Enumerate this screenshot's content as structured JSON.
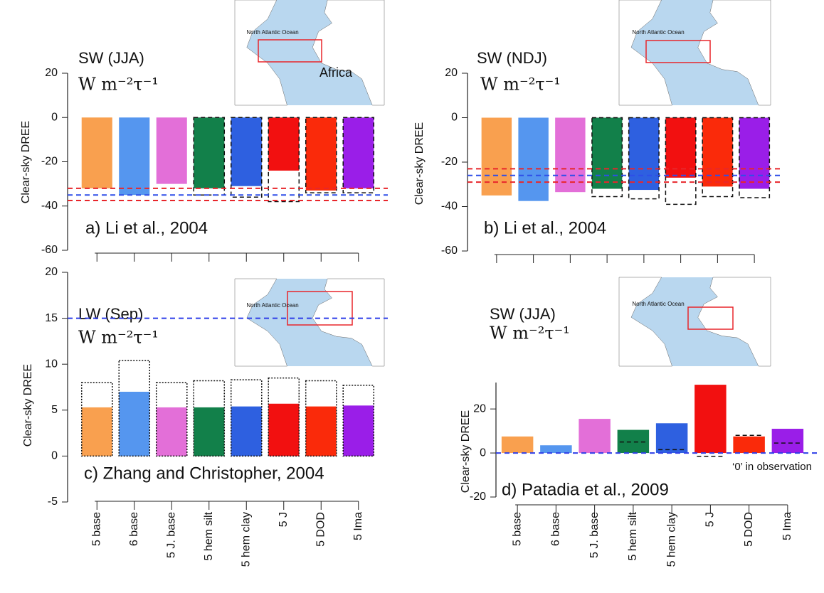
{
  "chart_data": [
    {
      "type": "bar",
      "title": "SW (JJA)",
      "subtitle": "W m⁻²τ⁻¹",
      "y_label": "Clear-sky DREE",
      "annotations": [
        "a) Li et al., 2004",
        "North Atlantic Ocean",
        "Africa"
      ],
      "values": [
        -32,
        -35,
        -30,
        -32,
        -31,
        -24,
        -33,
        -32
      ],
      "outline_values": [
        null,
        null,
        null,
        -35,
        -36,
        -38,
        -34,
        -34
      ],
      "outline_style": "dashed",
      "colors": [
        "#f9a04f",
        "#5596ef",
        "#e36fd8",
        "#12804a",
        "#2e60e0",
        "#f21010",
        "#fa2a0a",
        "#9a1ee8"
      ],
      "hlines": [
        {
          "value": -32,
          "color": "#e8262b"
        },
        {
          "value": -35,
          "color": "#2e4ee8"
        },
        {
          "value": -37.5,
          "color": "#e8262b"
        }
      ],
      "ylim": [
        -60,
        20
      ],
      "yticks": [
        20,
        0,
        -20,
        -40,
        -60
      ]
    },
    {
      "type": "bar",
      "title": "SW (NDJ)",
      "subtitle": "W m⁻²τ⁻¹",
      "y_label": "Clear-sky DREE",
      "annotations": [
        "b) Li et al., 2004",
        "North Atlantic Ocean"
      ],
      "values": [
        -35,
        -37.5,
        -33.5,
        -32,
        -32.5,
        -27,
        -31,
        -32
      ],
      "outline_values": [
        null,
        null,
        null,
        -35.5,
        -36.5,
        -39,
        -35.5,
        -36
      ],
      "outline_style": "dashed",
      "colors": [
        "#f9a04f",
        "#5596ef",
        "#e36fd8",
        "#12804a",
        "#2e60e0",
        "#f21010",
        "#fa2a0a",
        "#9a1ee8"
      ],
      "hlines": [
        {
          "value": -23,
          "color": "#e8262b"
        },
        {
          "value": -26,
          "color": "#2e4ee8"
        },
        {
          "value": -29,
          "color": "#e8262b"
        }
      ],
      "ylim": [
        -60,
        20
      ],
      "yticks": [
        20,
        0,
        -20,
        -40,
        -60
      ]
    },
    {
      "type": "bar",
      "title": "LW (Sep)",
      "subtitle": "W m⁻²τ⁻¹",
      "y_label": "Clear-sky DREE",
      "annotations": [
        "c) Zhang and Christopher, 2004",
        "North Atlantic Ocean"
      ],
      "categories": [
        "5 base",
        "6 base",
        "5 J. base",
        "5 hem silt",
        "5 hem clay",
        "5 J",
        "5 DOD",
        "5 Ima"
      ],
      "values": [
        5.3,
        7.0,
        5.3,
        5.3,
        5.4,
        5.7,
        5.4,
        5.5
      ],
      "outline_values": [
        8.0,
        10.4,
        8.0,
        8.2,
        8.3,
        8.5,
        8.2,
        7.7
      ],
      "outline_style": "dotted",
      "colors": [
        "#f9a04f",
        "#5596ef",
        "#e36fd8",
        "#12804a",
        "#2e60e0",
        "#f21010",
        "#fa2a0a",
        "#9a1ee8"
      ],
      "hlines": [
        {
          "value": 15,
          "color": "#2e3ee8"
        }
      ],
      "ylim": [
        -5,
        20
      ],
      "yticks": [
        20,
        15,
        10,
        5,
        0,
        -5
      ]
    },
    {
      "type": "bar",
      "title": "SW (JJA)",
      "subtitle": "W m⁻²τ⁻¹",
      "y_label": "Clear-sky DREE",
      "annotations": [
        "d) Patadia et al., 2009",
        "North Atlantic Ocean",
        "‘0’ in observation"
      ],
      "categories": [
        "5 base",
        "6 base",
        "5 J. base",
        "5 hem silt",
        "5 hem clay",
        "5 J",
        "5 DOD",
        "5 Ima"
      ],
      "values": [
        7.5,
        3.5,
        15.5,
        10.5,
        13.5,
        31,
        7.5,
        11
      ],
      "marker_values": [
        null,
        null,
        null,
        5,
        1.5,
        -1.5,
        8,
        4.5
      ],
      "colors": [
        "#f9a04f",
        "#5596ef",
        "#e36fd8",
        "#12804a",
        "#2e60e0",
        "#f21010",
        "#fa2a0a",
        "#9a1ee8"
      ],
      "hlines": [
        {
          "value": 0,
          "color": "#2e3ee8"
        }
      ],
      "ylim": [
        -20,
        32
      ],
      "yticks": [
        20,
        0,
        -20
      ]
    }
  ]
}
